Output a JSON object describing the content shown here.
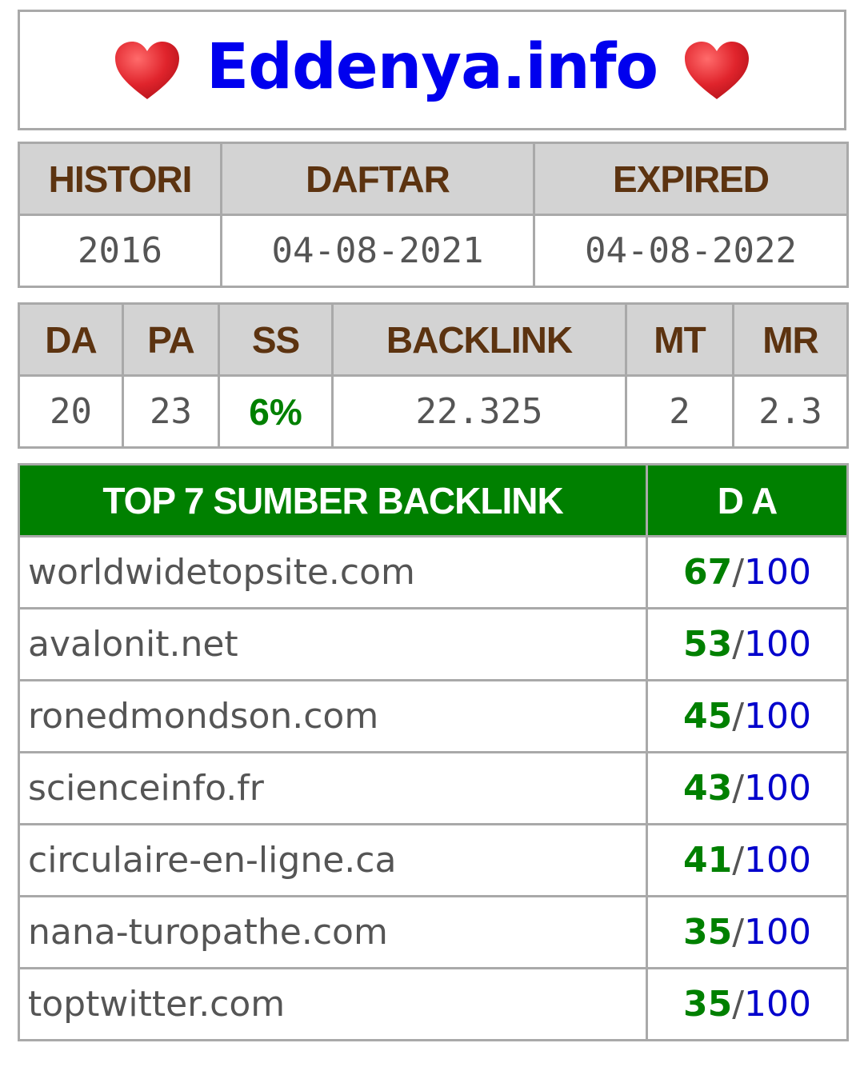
{
  "header": {
    "site_name": "Eddenya.info",
    "left_icon": "red-heart-icon",
    "right_icon": "red-heart-icon",
    "heart_color": "#e0242c"
  },
  "registration": {
    "headers": [
      "HISTORI",
      "DAFTAR",
      "EXPIRED"
    ],
    "values": [
      "2016",
      "04-08-2021",
      "04-08-2022"
    ]
  },
  "metrics": {
    "headers": [
      "DA",
      "PA",
      "SS",
      "BACKLINK",
      "MT",
      "MR"
    ],
    "values": [
      "20",
      "23",
      "6%",
      "22.325",
      "2",
      "2.3"
    ]
  },
  "backlinks": {
    "header_source": "TOP 7 SUMBER BACKLINK",
    "header_da": "D A",
    "header_color": "#008000",
    "rows": [
      {
        "domain": "worldwidetopsite.com",
        "score": "67",
        "sep": "/",
        "max": "100"
      },
      {
        "domain": "avalonit.net",
        "score": "53",
        "sep": "/",
        "max": "100"
      },
      {
        "domain": "ronedmondson.com",
        "score": "45",
        "sep": "/",
        "max": "100"
      },
      {
        "domain": "scienceinfo.fr",
        "score": "43",
        "sep": "/",
        "max": "100"
      },
      {
        "domain": "circulaire-en-ligne.ca",
        "score": "41",
        "sep": "/",
        "max": "100"
      },
      {
        "domain": "nana-turopathe.com",
        "score": "35",
        "sep": "/",
        "max": "100"
      },
      {
        "domain": "toptwitter.com",
        "score": "35",
        "sep": "/",
        "max": "100"
      }
    ]
  }
}
